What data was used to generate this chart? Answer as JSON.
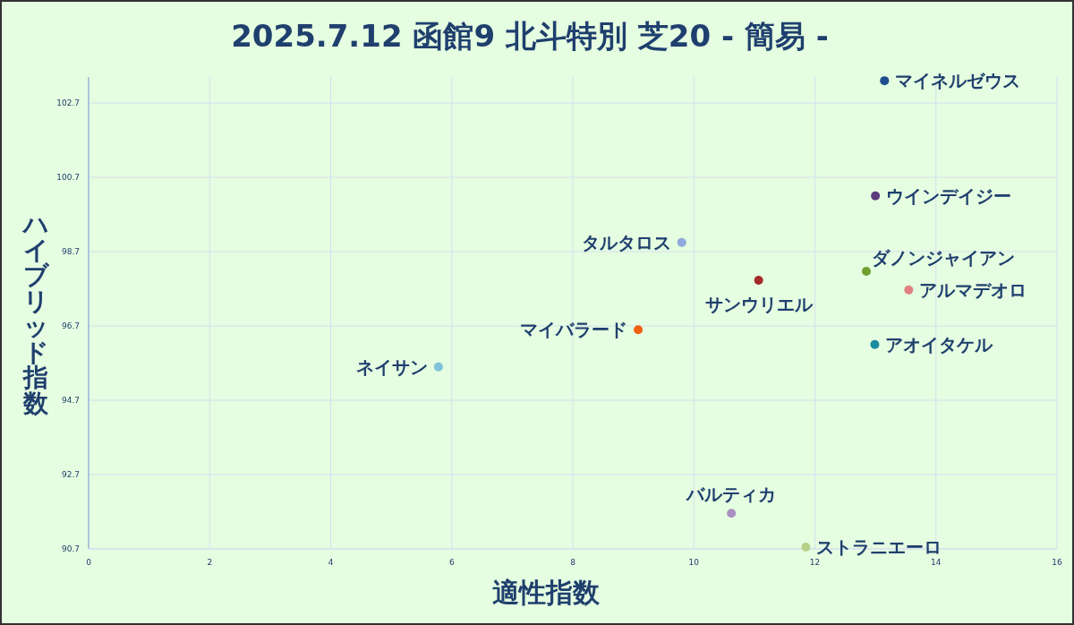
{
  "chart_data": {
    "type": "scatter",
    "title": "2025.7.12 函館9 北斗特別 芝20 - 簡易 -",
    "xlabel": "適性指数",
    "ylabel": "ハイブリッド指数",
    "marker": "circle",
    "grid": true,
    "xlim": [
      0,
      16
    ],
    "xticks": [
      0,
      2,
      4,
      6,
      8,
      10,
      12,
      14,
      16
    ],
    "ylim": [
      90.7,
      103.4
    ],
    "yticks": [
      90.7,
      92.7,
      94.7,
      96.7,
      98.7,
      100.7,
      102.7
    ],
    "series": [
      {
        "name": "マイネルゼウス",
        "color": "#1f4e8c",
        "x": [
          13.15
        ],
        "values": [
          103.3
        ]
      },
      {
        "name": "ウインデイジー",
        "color": "#5b3a7e",
        "x": [
          13.0
        ],
        "values": [
          100.2
        ]
      },
      {
        "name": "タルタロス",
        "color": "#8faadc",
        "x": [
          9.8
        ],
        "values": [
          98.95
        ]
      },
      {
        "name": "サンウリエル",
        "color": "#a52a2a",
        "x": [
          11.07
        ],
        "values": [
          97.93
        ]
      },
      {
        "name": "ダノンジャイアン",
        "color": "#70a030",
        "x": [
          12.85
        ],
        "values": [
          98.17
        ]
      },
      {
        "name": "アルマデオロ",
        "color": "#e08080",
        "x": [
          13.55
        ],
        "values": [
          97.67
        ]
      },
      {
        "name": "マイバラード",
        "color": "#f06010",
        "x": [
          9.08
        ],
        "values": [
          96.6
        ]
      },
      {
        "name": "アオイタケル",
        "color": "#1a8aa0",
        "x": [
          12.99
        ],
        "values": [
          96.2
        ]
      },
      {
        "name": "ネイサン",
        "color": "#7fc4d8",
        "x": [
          5.78
        ],
        "values": [
          95.6
        ]
      },
      {
        "name": "バルティカ",
        "color": "#a890c0",
        "x": [
          10.62
        ],
        "values": [
          91.66
        ]
      },
      {
        "name": "ストラニエーロ",
        "color": "#b8d08a",
        "x": [
          11.85
        ],
        "values": [
          90.75
        ]
      }
    ]
  }
}
